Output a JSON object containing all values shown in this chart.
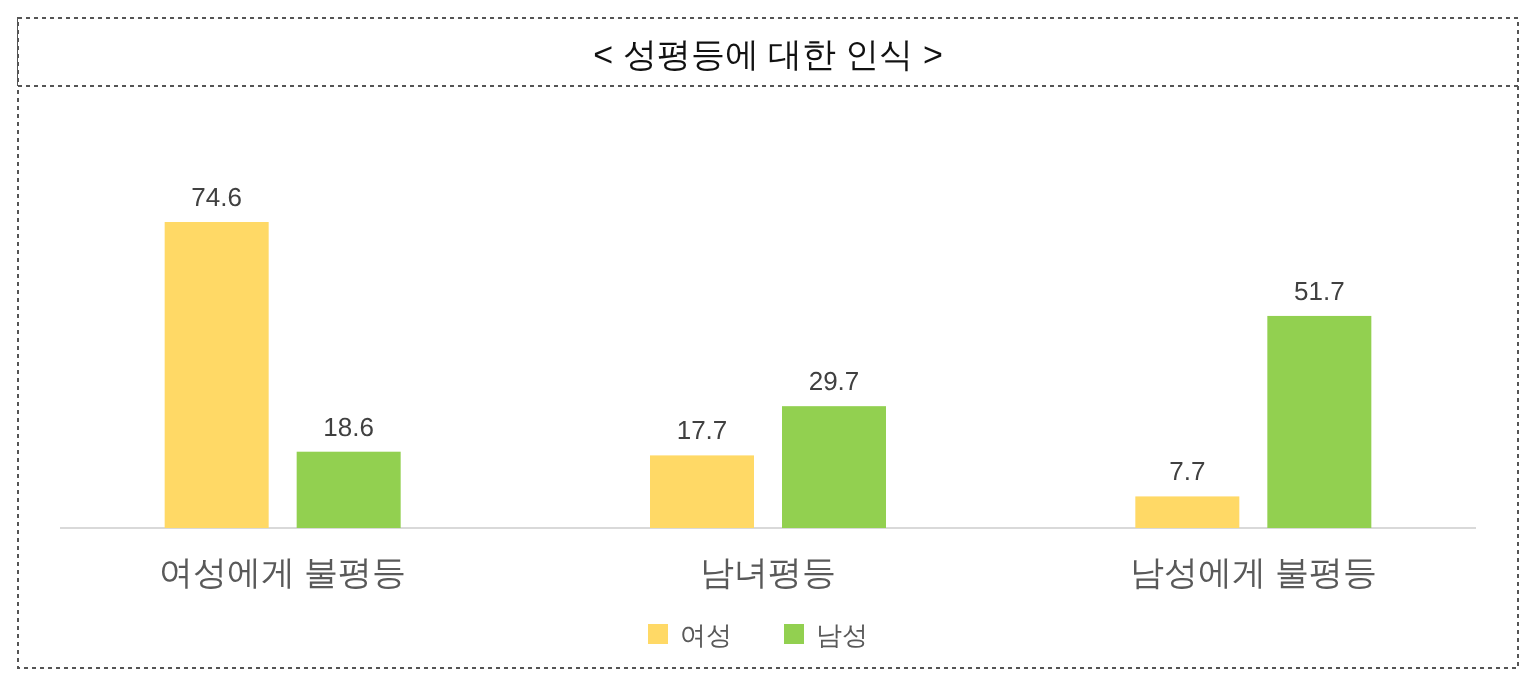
{
  "chart_data": {
    "type": "bar",
    "title": "< 성평등에 대한 인식 >",
    "categories": [
      "여성에게 불평등",
      "남녀평등",
      "남성에게 불평등"
    ],
    "series": [
      {
        "name": "여성",
        "color": "#ffd966",
        "values": [
          74.6,
          17.7,
          7.7
        ]
      },
      {
        "name": "남성",
        "color": "#92d050",
        "values": [
          18.6,
          29.7,
          51.7
        ]
      }
    ],
    "data_labels": true,
    "legend": "bottom",
    "grid": false
  }
}
